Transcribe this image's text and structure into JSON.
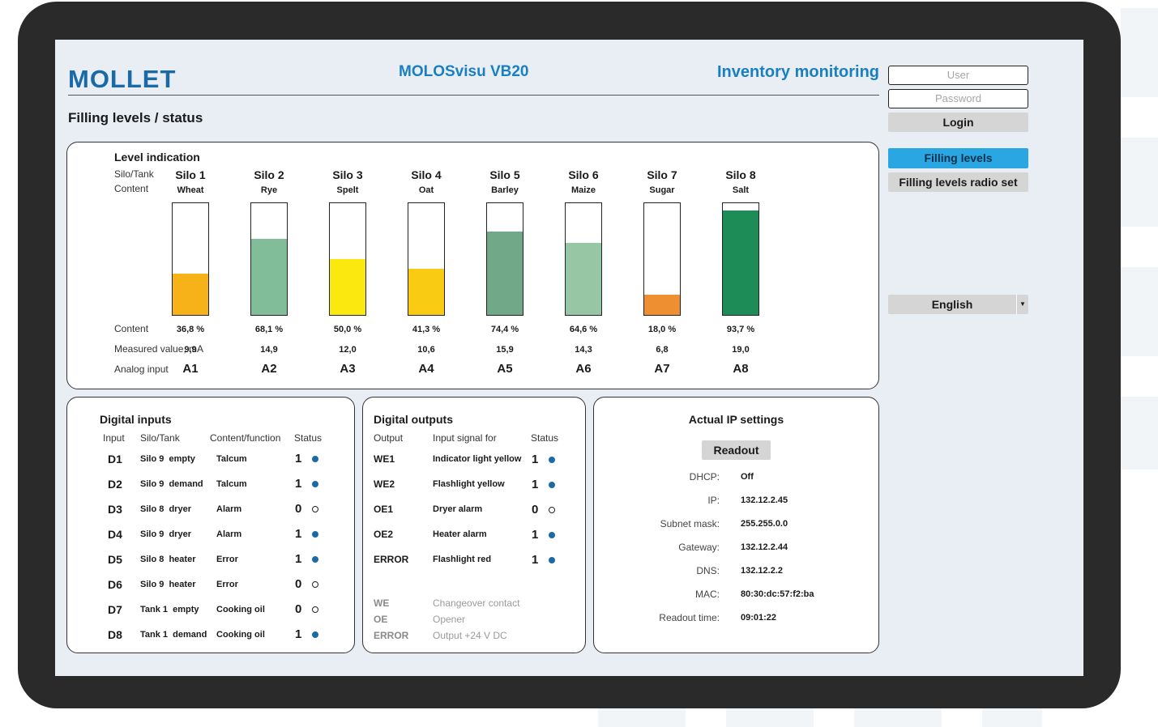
{
  "header": {
    "logo_text": "MOLLET",
    "app_title": "MOLOSvisu VB20",
    "section_title": "Inventory monitoring",
    "page_title": "Filling levels / status"
  },
  "login": {
    "user_placeholder": "User",
    "password_placeholder": "Password",
    "login_label": "Login"
  },
  "nav": {
    "filling_levels": "Filling levels",
    "filling_levels_radio": "Filling levels radio set",
    "language": "English"
  },
  "level_panel": {
    "title": "Level indication",
    "silo_tank_label": "Silo/Tank",
    "content_label": "Content",
    "content_pct_label": "Content",
    "measured_label": "Measured value, mA",
    "analog_label": "Analog input",
    "silos": [
      {
        "name": "Silo 1",
        "content": "Wheat",
        "percent": "36,8 %",
        "level": 36.8,
        "ma": "9,9",
        "input": "A1",
        "color": "#f7b21a"
      },
      {
        "name": "Silo 2",
        "content": "Rye",
        "percent": "68,1 %",
        "level": 68.1,
        "ma": "14,9",
        "input": "A2",
        "color": "#80bd98"
      },
      {
        "name": "Silo 3",
        "content": "Spelt",
        "percent": "50,0 %",
        "level": 50.0,
        "ma": "12,0",
        "input": "A3",
        "color": "#fbe80f"
      },
      {
        "name": "Silo 4",
        "content": "Oat",
        "percent": "41,3 %",
        "level": 41.3,
        "ma": "10,6",
        "input": "A4",
        "color": "#f9cb13"
      },
      {
        "name": "Silo 5",
        "content": "Barley",
        "percent": "74,4 %",
        "level": 74.4,
        "ma": "15,9",
        "input": "A5",
        "color": "#71a988"
      },
      {
        "name": "Silo 6",
        "content": "Maize",
        "percent": "64,6 %",
        "level": 64.6,
        "ma": "14,3",
        "input": "A6",
        "color": "#97c6a4"
      },
      {
        "name": "Silo 7",
        "content": "Sugar",
        "percent": "18,0 %",
        "level": 18.0,
        "ma": "6,8",
        "input": "A7",
        "color": "#ee8f32"
      },
      {
        "name": "Silo 8",
        "content": "Salt",
        "percent": "93,7 %",
        "level": 93.7,
        "ma": "19,0",
        "input": "A8",
        "color": "#1e8c57"
      }
    ]
  },
  "digital_inputs": {
    "title": "Digital inputs",
    "headers": [
      "Input",
      "Silo/Tank",
      "Content/function",
      "Status"
    ],
    "rows": [
      {
        "code": "D1",
        "silo": "Silo 9  empty",
        "function": "Talcum",
        "status": "1",
        "on": true
      },
      {
        "code": "D2",
        "silo": "Silo 9  demand",
        "function": "Talcum",
        "status": "1",
        "on": true
      },
      {
        "code": "D3",
        "silo": "Silo 8  dryer",
        "function": "Alarm",
        "status": "0",
        "on": false
      },
      {
        "code": "D4",
        "silo": "Silo 9  dryer",
        "function": "Alarm",
        "status": "1",
        "on": true
      },
      {
        "code": "D5",
        "silo": "Silo 8  heater",
        "function": "Error",
        "status": "1",
        "on": true
      },
      {
        "code": "D6",
        "silo": "Silo 9  heater",
        "function": "Error",
        "status": "0",
        "on": false
      },
      {
        "code": "D7",
        "silo": "Tank 1  empty",
        "function": "Cooking oil",
        "status": "0",
        "on": false
      },
      {
        "code": "D8",
        "silo": "Tank 1  demand",
        "function": "Cooking oil",
        "status": "1",
        "on": true
      }
    ]
  },
  "digital_outputs": {
    "title": "Digital outputs",
    "headers": [
      "Output",
      "Input signal for",
      "Status"
    ],
    "rows": [
      {
        "code": "WE1",
        "signal": "Indicator light yellow",
        "status": "1",
        "on": true
      },
      {
        "code": "WE2",
        "signal": "Flashlight yellow",
        "status": "1",
        "on": true
      },
      {
        "code": "OE1",
        "signal": "Dryer alarm",
        "status": "0",
        "on": false
      },
      {
        "code": "OE2",
        "signal": "Heater alarm",
        "status": "1",
        "on": true
      },
      {
        "code": "ERROR",
        "signal": "Flashlight red",
        "status": "1",
        "on": true
      }
    ],
    "legend": [
      {
        "code": "WE",
        "text": "Changeover contact"
      },
      {
        "code": "OE",
        "text": "Opener"
      },
      {
        "code": "ERROR",
        "text": "Output +24 V DC"
      }
    ]
  },
  "ip_settings": {
    "title": "Actual IP settings",
    "readout_label": "Readout",
    "rows": [
      {
        "label": "DHCP:",
        "value": "Off"
      },
      {
        "label": "IP:",
        "value": "132.12.2.45"
      },
      {
        "label": "Subnet mask:",
        "value": "255.255.0.0"
      },
      {
        "label": "Gateway:",
        "value": "132.12.2.44"
      },
      {
        "label": "DNS:",
        "value": "132.12.2.2"
      },
      {
        "label": "MAC:",
        "value": "80:30:dc:57:f2:ba"
      },
      {
        "label": "Readout time:",
        "value": "09:01:22"
      }
    ]
  }
}
